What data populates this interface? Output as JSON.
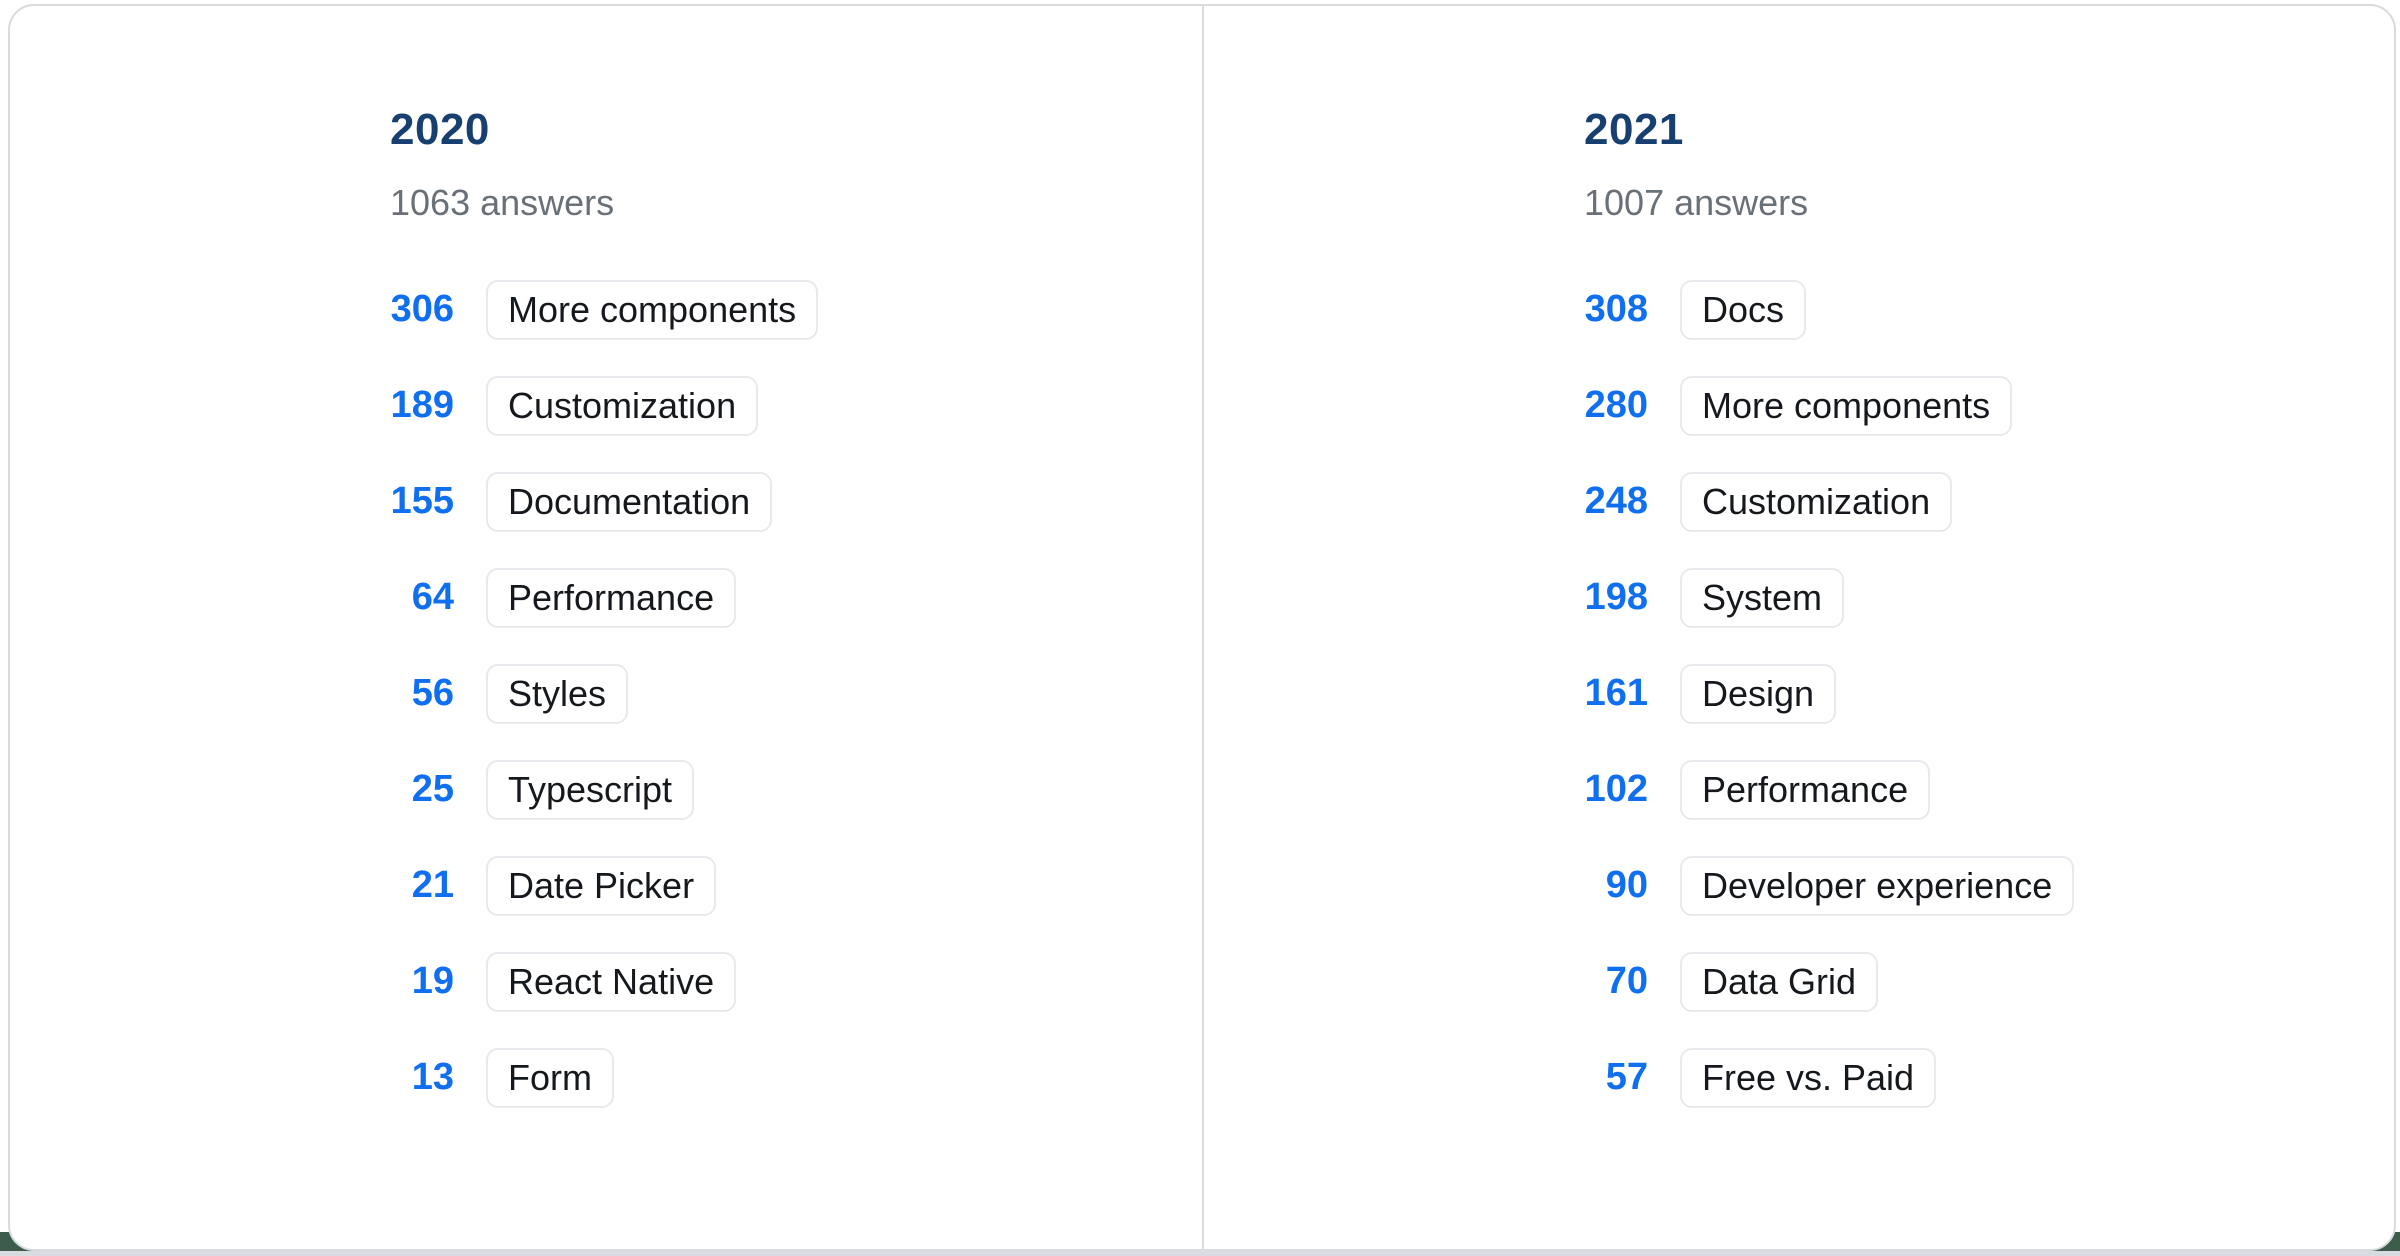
{
  "colors": {
    "page_bg": "#ffffff",
    "card_bg": "#ffffff",
    "card_border": "#d7dbdf",
    "divider": "#d7dbdf",
    "bottom_strip": "#d8dbdf",
    "footer_peek": "#3d5c4b",
    "year_heading": "#173f6f",
    "answers_text": "#697077",
    "count_text": "#0f6ff0",
    "chip_text": "#15191d",
    "chip_border": "#e7e9ec"
  },
  "columns": [
    {
      "year": "2020",
      "answers_label": "1063 answers",
      "items": [
        {
          "count": 306,
          "label": "More components"
        },
        {
          "count": 189,
          "label": "Customization"
        },
        {
          "count": 155,
          "label": "Documentation"
        },
        {
          "count": 64,
          "label": "Performance"
        },
        {
          "count": 56,
          "label": "Styles"
        },
        {
          "count": 25,
          "label": "Typescript"
        },
        {
          "count": 21,
          "label": "Date Picker"
        },
        {
          "count": 19,
          "label": "React Native"
        },
        {
          "count": 13,
          "label": "Form"
        }
      ]
    },
    {
      "year": "2021",
      "answers_label": "1007 answers",
      "items": [
        {
          "count": 308,
          "label": "Docs"
        },
        {
          "count": 280,
          "label": "More components"
        },
        {
          "count": 248,
          "label": "Customization"
        },
        {
          "count": 198,
          "label": "System"
        },
        {
          "count": 161,
          "label": "Design"
        },
        {
          "count": 102,
          "label": "Performance"
        },
        {
          "count": 90,
          "label": "Developer experience"
        },
        {
          "count": 70,
          "label": "Data Grid"
        },
        {
          "count": 57,
          "label": "Free vs. Paid"
        }
      ]
    }
  ],
  "chart_data": {
    "type": "table",
    "title": "",
    "series": [
      {
        "name": "2020",
        "total_answers": 1063,
        "categories": [
          "More components",
          "Customization",
          "Documentation",
          "Performance",
          "Styles",
          "Typescript",
          "Date Picker",
          "React Native",
          "Form"
        ],
        "values": [
          306,
          189,
          155,
          64,
          56,
          25,
          21,
          19,
          13
        ]
      },
      {
        "name": "2021",
        "total_answers": 1007,
        "categories": [
          "Docs",
          "More components",
          "Customization",
          "System",
          "Design",
          "Performance",
          "Developer experience",
          "Data Grid",
          "Free vs. Paid"
        ],
        "values": [
          308,
          280,
          248,
          198,
          161,
          102,
          90,
          70,
          57
        ]
      }
    ],
    "legend_position": "none",
    "grid": false
  }
}
